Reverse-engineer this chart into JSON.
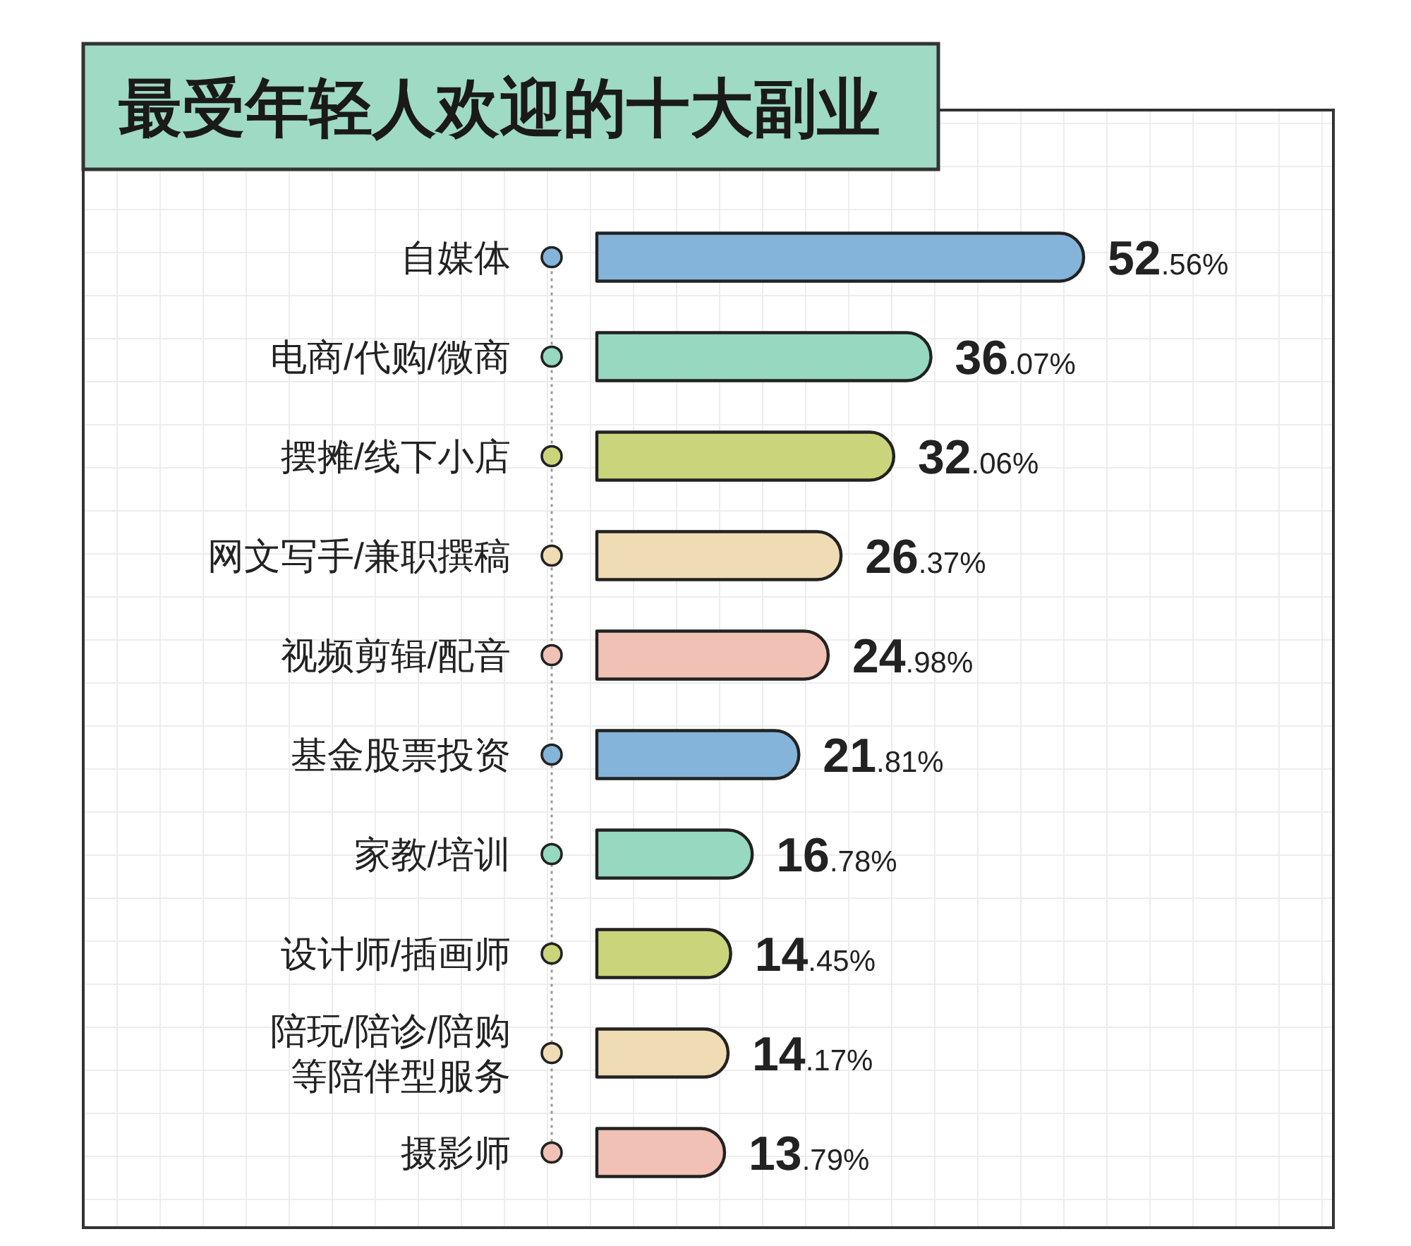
{
  "chart_data": {
    "type": "bar",
    "orientation": "horizontal",
    "title": "最受年轻人欢迎的十大副业",
    "categories": [
      "自媒体",
      "电商/代购/微商",
      "摆摊/线下小店",
      "网文写手/兼职撰稿",
      "视频剪辑/配音",
      "基金股票投资",
      "家教/培训",
      "设计师/插画师",
      "陪玩/陪诊/陪购等陪伴型服务",
      "摄影师"
    ],
    "values": [
      52.56,
      36.07,
      32.06,
      26.37,
      24.98,
      21.81,
      16.78,
      14.45,
      14.17,
      13.79
    ],
    "colors": [
      "#84b4d9",
      "#96d8c0",
      "#cad47a",
      "#efdcb4",
      "#f0c1b4",
      "#84b4d9",
      "#96d8c0",
      "#cad47a",
      "#efdcb4",
      "#f0c1b4"
    ],
    "value_labels": [
      "52.56%",
      "36.07%",
      "32.06%",
      "26.37%",
      "24.98%",
      "21.81%",
      "16.78%",
      "14.45%",
      "14.17%",
      "13.79%"
    ]
  }
}
